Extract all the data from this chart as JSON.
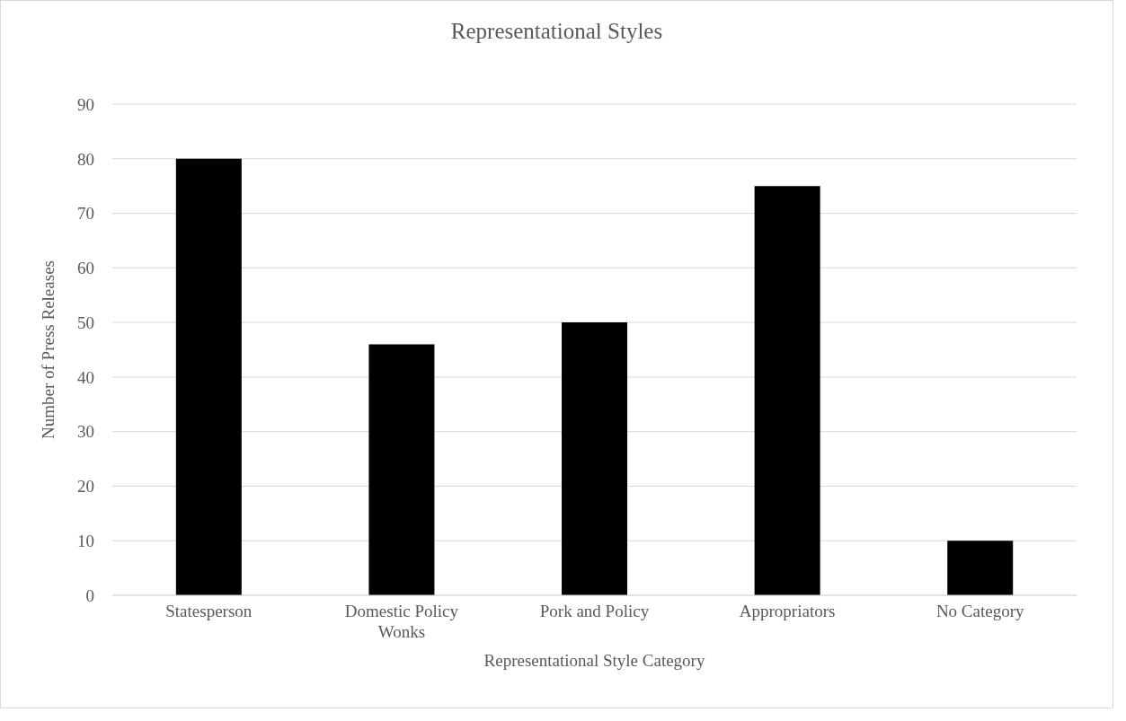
{
  "chart_data": {
    "type": "bar",
    "title": "Representational Styles",
    "xlabel": "Representational Style Category",
    "ylabel": "Number of Press Releases",
    "categories": [
      "Statesperson",
      "Domestic Policy Wonks",
      "Pork and Policy",
      "Appropriators",
      "No Category"
    ],
    "values": [
      80,
      46,
      50,
      75,
      10
    ],
    "color": "#000000",
    "ylim": [
      0,
      90
    ],
    "yticks": [
      0,
      10,
      20,
      30,
      40,
      50,
      60,
      70,
      80,
      90
    ],
    "grid": "y"
  }
}
